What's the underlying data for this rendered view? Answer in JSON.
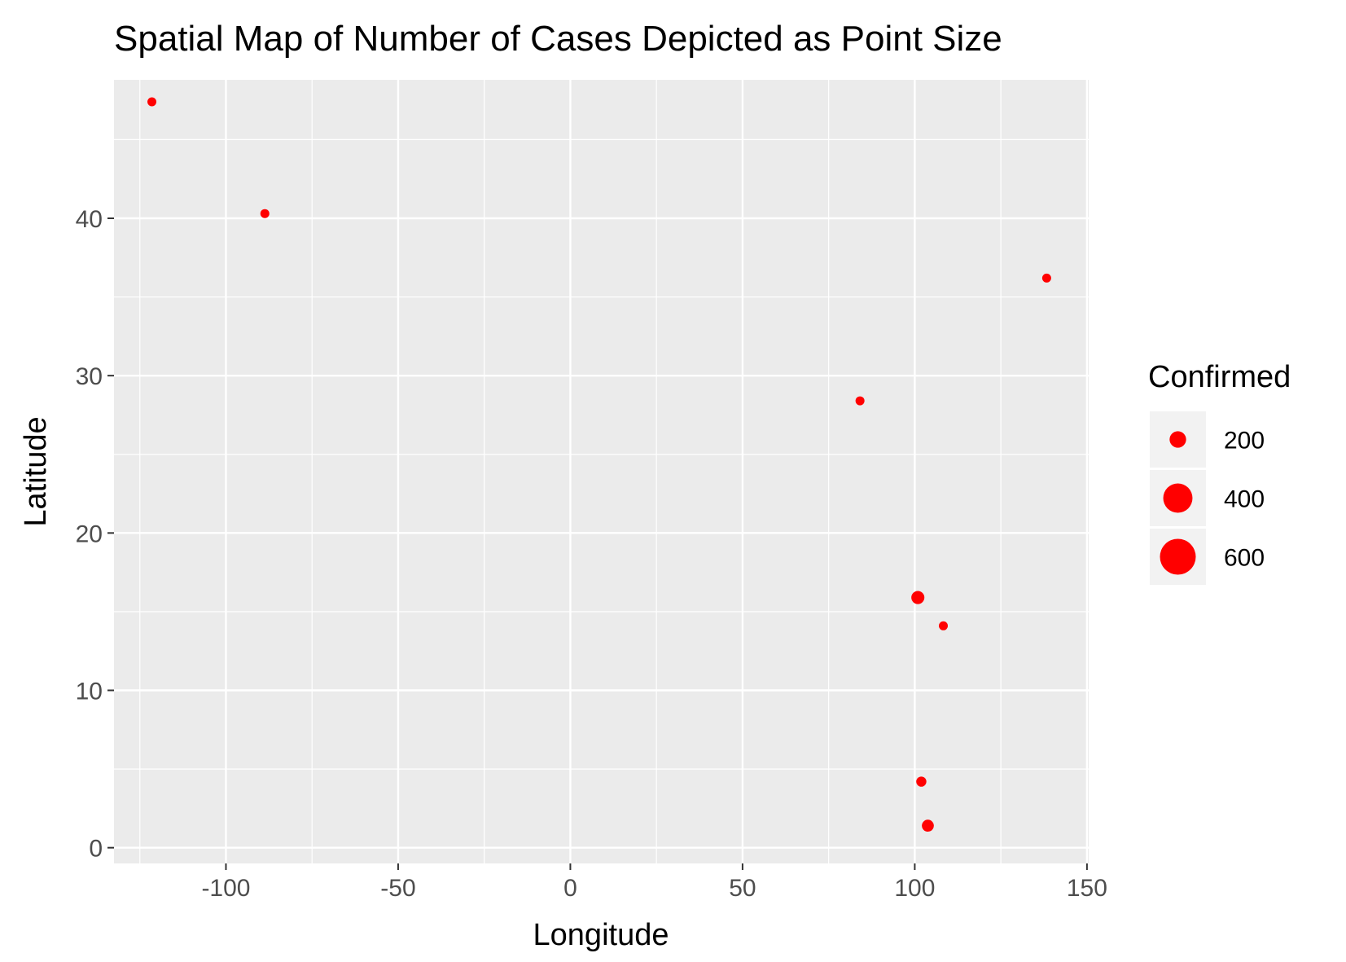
{
  "chart_data": {
    "type": "scatter",
    "title": "Spatial Map of Number of Cases Depicted as Point Size",
    "xlabel": "Longitude",
    "ylabel": "Latitude",
    "xlim": [
      -132.5,
      150.5
    ],
    "ylim": [
      -1,
      48.8
    ],
    "x_ticks": [
      -100,
      -50,
      0,
      50,
      100,
      150
    ],
    "x_tick_labels": [
      "-100",
      "-50",
      "0",
      "50",
      "100",
      "150"
    ],
    "y_ticks": [
      0,
      10,
      20,
      30,
      40
    ],
    "y_tick_labels": [
      "0",
      "10",
      "20",
      "30",
      "40"
    ],
    "grid": true,
    "size_variable": "Confirmed",
    "points": [
      {
        "x": -121.5,
        "y": 47.4,
        "confirmed": 1
      },
      {
        "x": -88.7,
        "y": 40.3,
        "confirmed": 2
      },
      {
        "x": 84.1,
        "y": 28.4,
        "confirmed": 1
      },
      {
        "x": 138.3,
        "y": 36.2,
        "confirmed": 20
      },
      {
        "x": 100.9,
        "y": 15.9,
        "confirmed": 80
      },
      {
        "x": 108.3,
        "y": 14.1,
        "confirmed": 16
      },
      {
        "x": 101.9,
        "y": 4.2,
        "confirmed": 48
      },
      {
        "x": 103.8,
        "y": 1.4,
        "confirmed": 67
      }
    ],
    "legend": {
      "title": "Confirmed",
      "position": "right",
      "entries": [
        {
          "label": "200",
          "value": 200
        },
        {
          "label": "400",
          "value": 400
        },
        {
          "label": "600",
          "value": 600
        }
      ]
    },
    "colors": {
      "point": "#ff0000",
      "panel_background": "#ebebeb",
      "grid_major": "#ffffff",
      "tick_mark": "#333333"
    }
  }
}
